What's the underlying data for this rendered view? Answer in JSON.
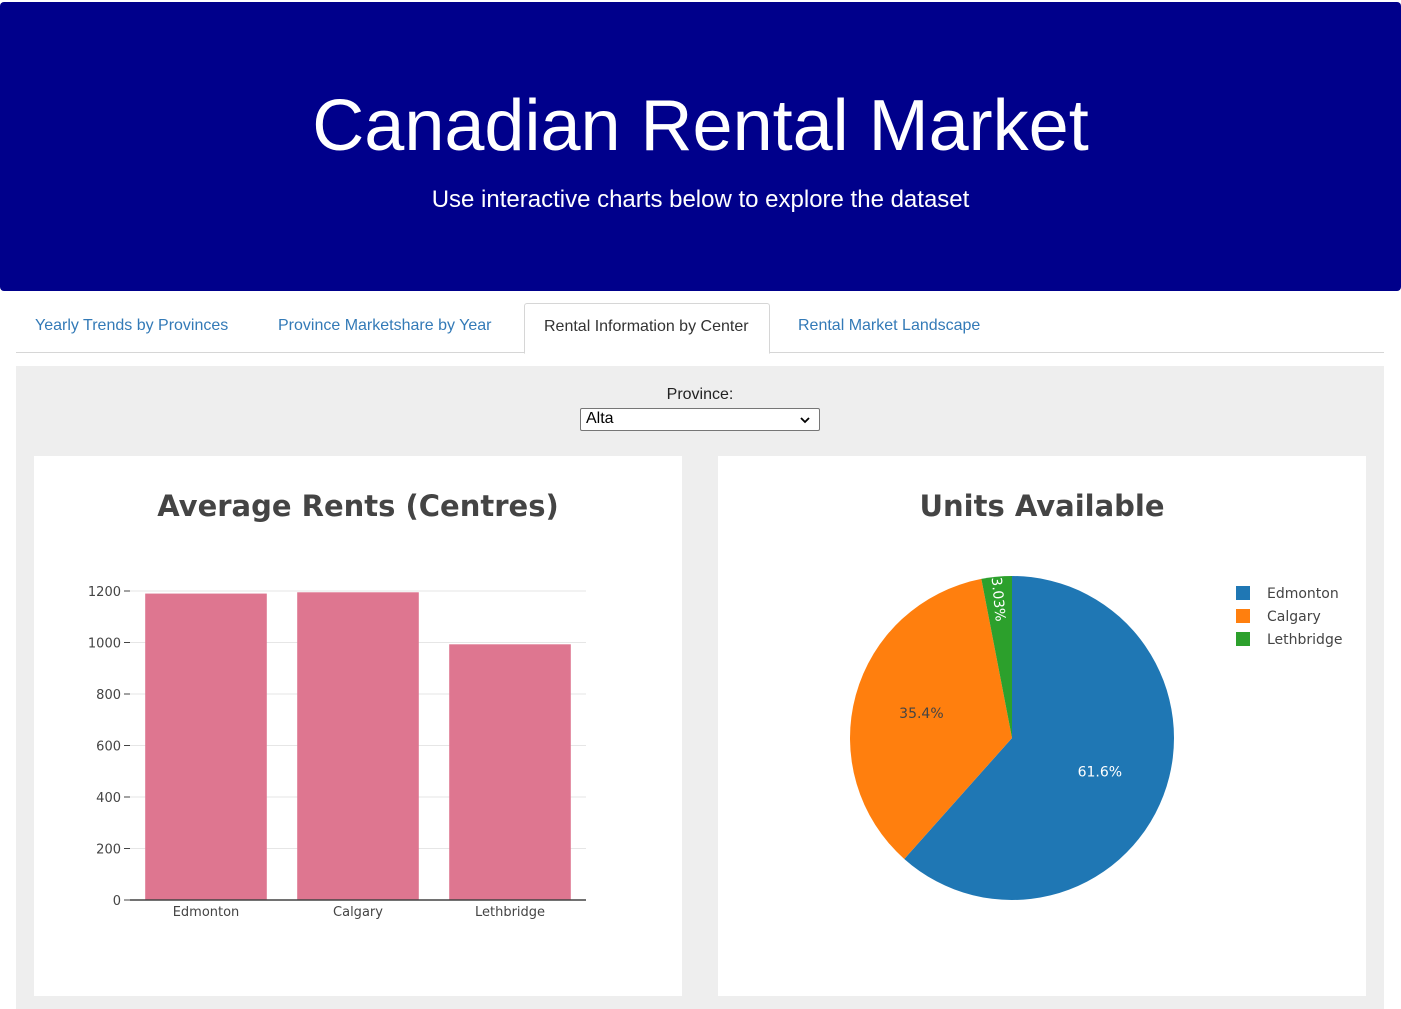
{
  "header": {
    "title": "Canadian Rental Market",
    "subtitle": "Use interactive charts below to explore the dataset"
  },
  "tabs": [
    {
      "label": "Yearly Trends by Provinces",
      "active": false
    },
    {
      "label": "Province Marketshare by Year",
      "active": false
    },
    {
      "label": "Rental Information by Center",
      "active": true
    },
    {
      "label": "Rental Market Landscape",
      "active": false
    }
  ],
  "filter": {
    "label": "Province:",
    "value": "Alta"
  },
  "colors": {
    "header_bg": "#00008b",
    "tab_link": "#337ab7",
    "bar": "#de7690",
    "edmonton": "#1f77b4",
    "calgary": "#ff7f0e",
    "lethbridge": "#2ca02c"
  },
  "chart_data": [
    {
      "type": "bar",
      "title": "Average Rents (Centres)",
      "categories": [
        "Edmonton",
        "Calgary",
        "Lethbridge"
      ],
      "values": [
        1190,
        1195,
        993
      ],
      "ylim": [
        0,
        1200
      ],
      "yticks": [
        0,
        200,
        400,
        600,
        800,
        1000,
        1200
      ],
      "grid": true,
      "xlabel": "",
      "ylabel": ""
    },
    {
      "type": "pie",
      "title": "Units Available",
      "labels": [
        "Edmonton",
        "Calgary",
        "Lethbridge"
      ],
      "percent": [
        61.6,
        35.4,
        3.03
      ],
      "percent_labels": [
        "61.6%",
        "35.4%",
        "3.03%"
      ],
      "legend": "top-right"
    }
  ]
}
